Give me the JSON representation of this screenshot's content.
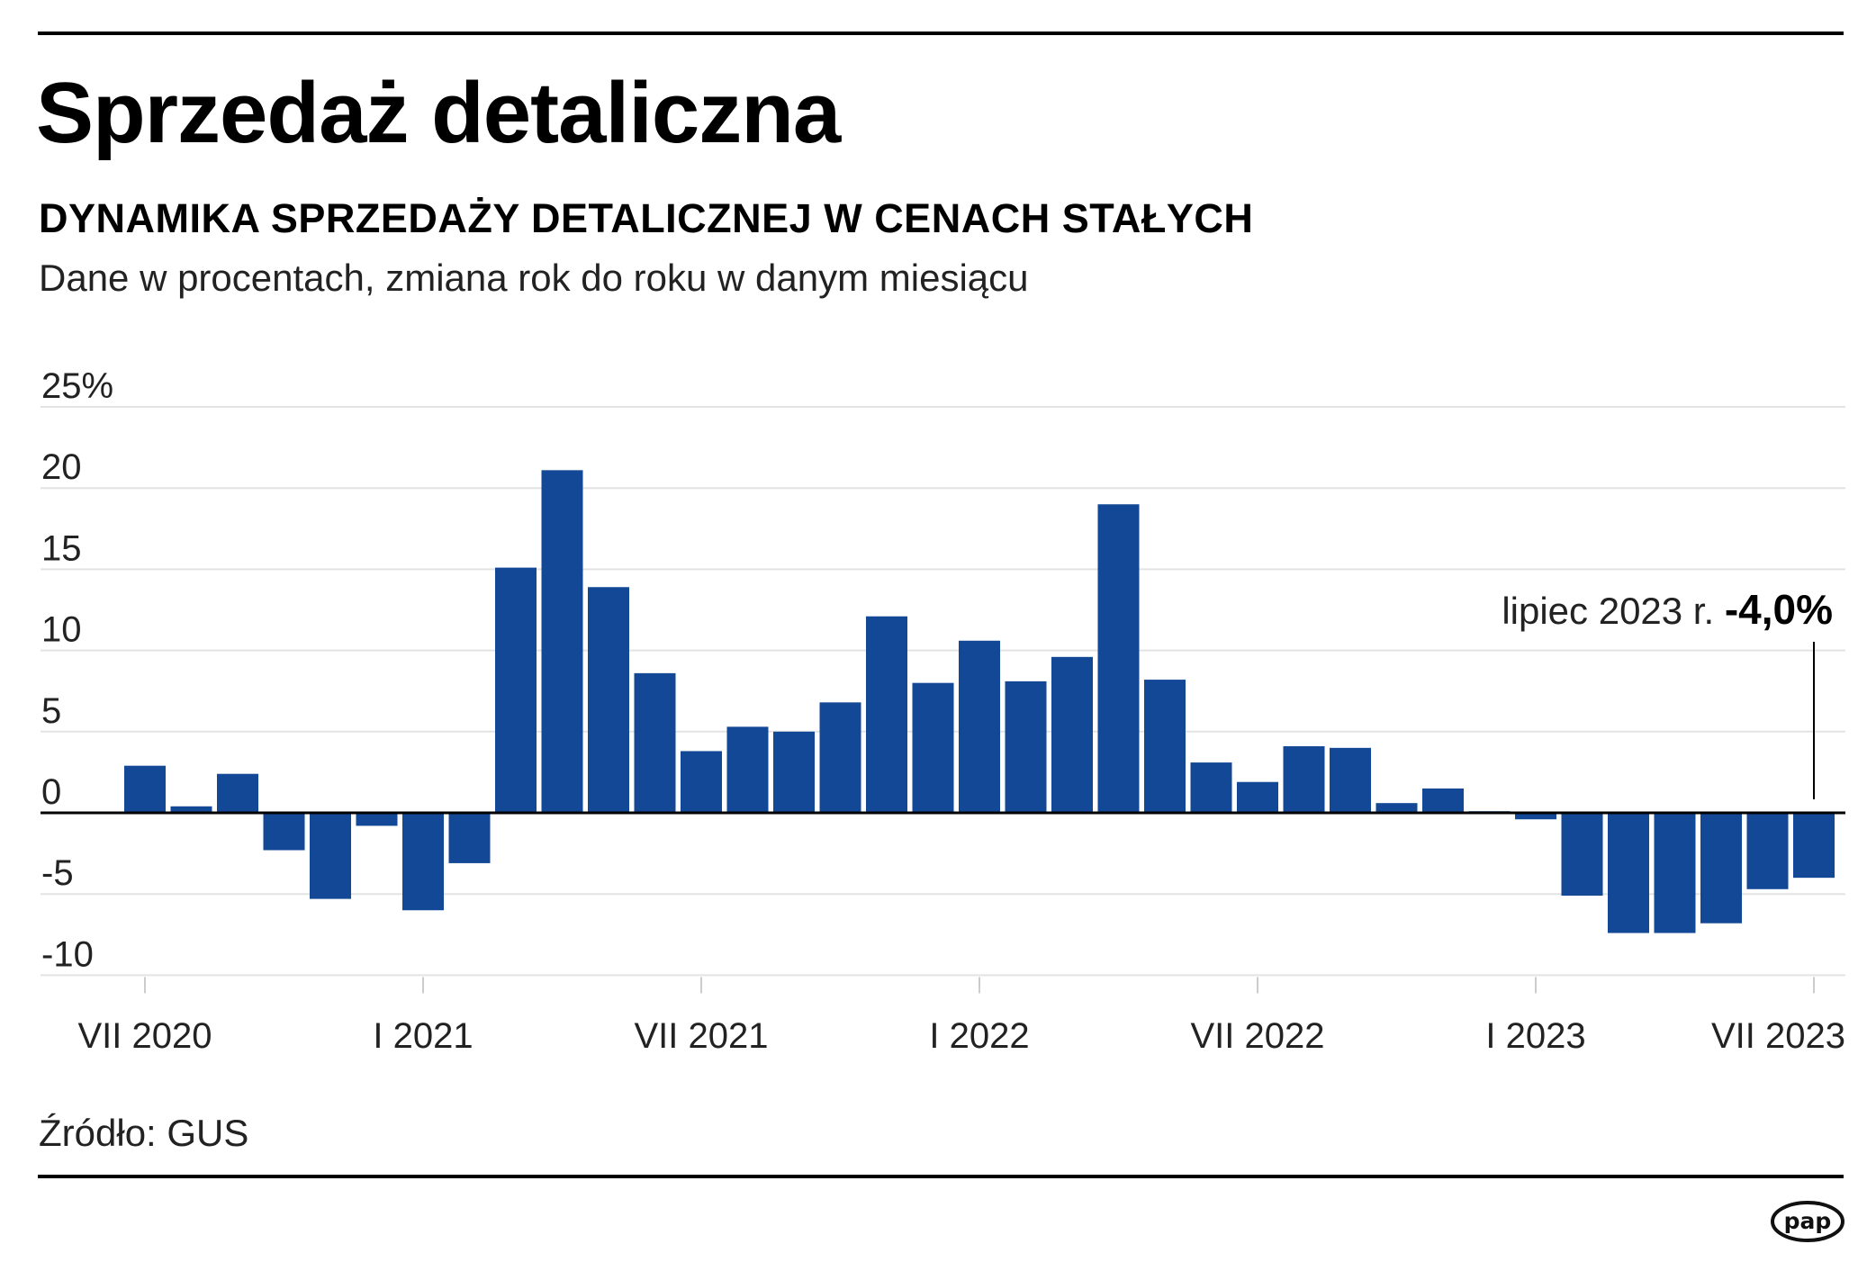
{
  "title": "Sprzedaż detaliczna",
  "subtitle": "DYNAMIKA SPRZEDAŻY DETALICZNEJ W CENACH STAŁYCH",
  "description": "Dane w procentach, zmiana rok do roku w danym miesiącu",
  "source": "Źródło: GUS",
  "logo_text": "pap",
  "colors": {
    "bar": "#134896",
    "grid": "#e3e3e3",
    "axis": "#000000",
    "text": "#222222"
  },
  "chart_data": {
    "type": "bar",
    "categories": [
      "VII 2020",
      "VIII 2020",
      "IX 2020",
      "X 2020",
      "XI 2020",
      "XII 2020",
      "I 2021",
      "II 2021",
      "III 2021",
      "IV 2021",
      "V 2021",
      "VI 2021",
      "VII 2021",
      "VIII 2021",
      "IX 2021",
      "X 2021",
      "XI 2021",
      "XII 2021",
      "I 2022",
      "II 2022",
      "III 2022",
      "IV 2022",
      "V 2022",
      "VI 2022",
      "VII 2022",
      "VIII 2022",
      "IX 2022",
      "X 2022",
      "XI 2022",
      "XII 2022",
      "I 2023",
      "II 2023",
      "III 2023",
      "IV 2023",
      "V 2023",
      "VI 2023",
      "VII 2023"
    ],
    "values": [
      2.9,
      0.4,
      2.4,
      -2.3,
      -5.3,
      -0.8,
      -6.0,
      -3.1,
      15.1,
      21.1,
      13.9,
      8.6,
      3.8,
      5.3,
      5.0,
      6.8,
      12.1,
      8.0,
      10.6,
      8.1,
      9.6,
      19.0,
      8.2,
      3.1,
      1.9,
      4.1,
      4.0,
      0.6,
      1.5,
      0.1,
      -0.4,
      -5.1,
      -7.4,
      -7.4,
      -6.8,
      -4.7,
      -4.0
    ],
    "tick_labels": [
      "VII 2020",
      "I 2021",
      "VII 2021",
      "I 2022",
      "VII 2022",
      "I 2023",
      "VII 2023"
    ],
    "tick_indices": [
      0,
      6,
      12,
      18,
      24,
      30,
      36
    ],
    "y_ticks": [
      25,
      20,
      15,
      10,
      5,
      0,
      -5,
      -10
    ],
    "y_tick_labels": [
      "25%",
      "20",
      "15",
      "10",
      "5",
      "0",
      "-5",
      "-10"
    ],
    "ylim": [
      -10,
      25
    ],
    "xlabel": "",
    "ylabel": "",
    "grid": true,
    "annotation": {
      "index": 36,
      "label": "lipiec 2023 r.",
      "value_label": "-4,0%"
    }
  }
}
